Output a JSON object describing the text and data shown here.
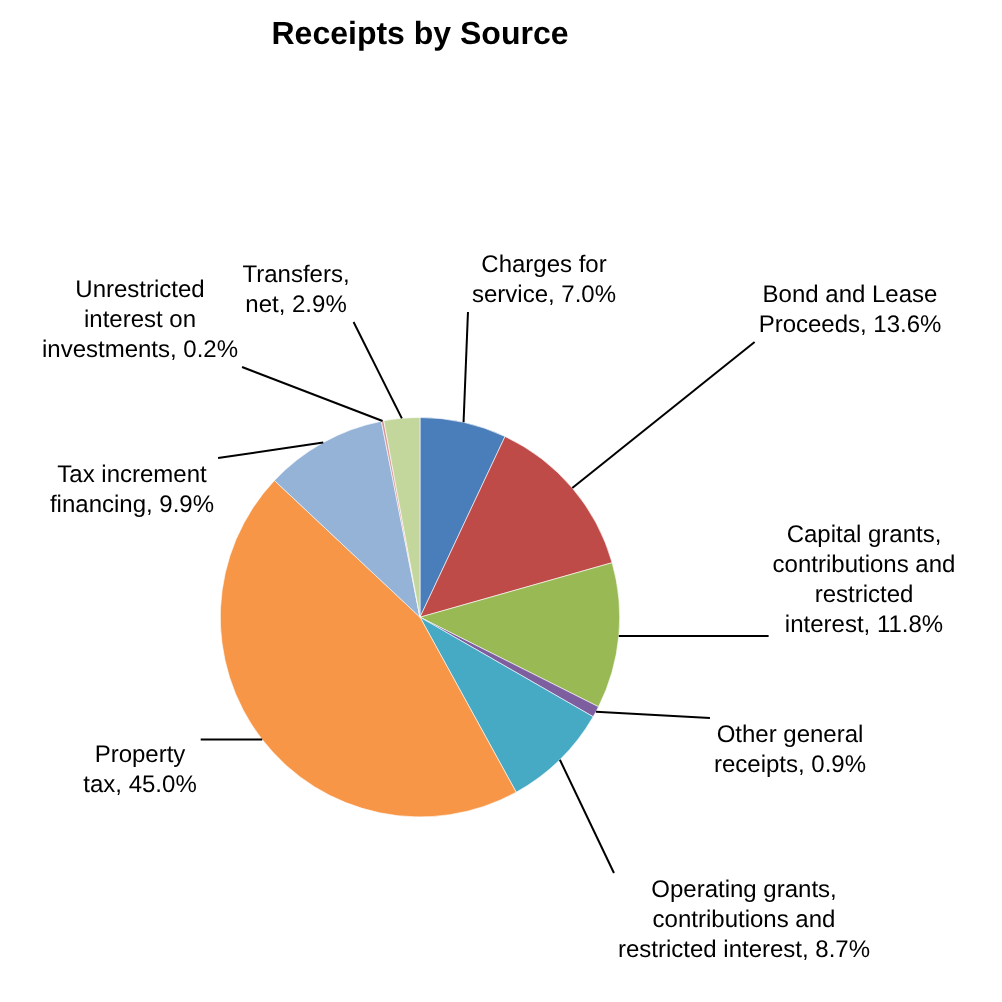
{
  "chart_data": {
    "type": "pie",
    "title": "Receipts by Source",
    "categories": [
      "Charges for service",
      "Bond and Lease Proceeds",
      "Capital grants, contributions and restricted interest",
      "Other general receipts",
      "Operating grants, contributions and restricted interest",
      "Property tax",
      "Tax increment financing",
      "Unrestricted interest on investments",
      "Transfers, net"
    ],
    "values": [
      7.0,
      13.6,
      11.8,
      0.9,
      8.7,
      45.0,
      9.9,
      0.2,
      2.9
    ],
    "colors": [
      "#4a7ebb",
      "#be4b48",
      "#98b954",
      "#7d5fa0",
      "#46aac5",
      "#f79646",
      "#95b3d7",
      "#d99694",
      "#c3d69b"
    ],
    "value_labels": [
      "7.0%",
      "13.6%",
      "11.8%",
      "0.9%",
      "8.7%",
      "45.0%",
      "9.9%",
      "0.2%",
      "2.9%"
    ],
    "legend": false
  }
}
